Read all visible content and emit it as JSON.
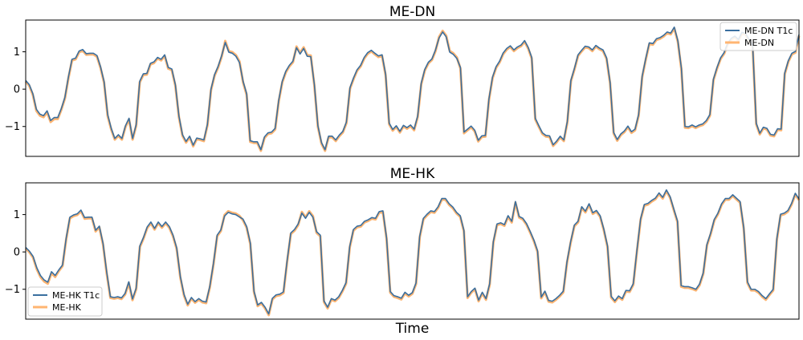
{
  "figure": {
    "xlabel": "Time"
  },
  "chart_data": [
    {
      "type": "line",
      "title": "ME-DN",
      "xlabel": "",
      "ylabel": "",
      "ylim": [
        -1.8,
        1.85
      ],
      "yticks": [
        -1,
        0,
        1
      ],
      "xticks": [],
      "grid": false,
      "legend_position": "top-right",
      "colors": {
        "fitted": "#3a6f9f",
        "observed": "#ffb572"
      },
      "series": [
        {
          "name": "ME-DN T1c",
          "role": "fitted",
          "color": "#3a6f9f",
          "values": [
            0.23,
            0.12,
            -0.12,
            -0.54,
            -0.67,
            -0.71,
            -0.58,
            -0.84,
            -0.76,
            -0.76,
            -0.52,
            -0.22,
            0.33,
            0.8,
            0.83,
            1.02,
            1.06,
            0.95,
            0.96,
            0.96,
            0.9,
            0.6,
            0.2,
            -0.68,
            -1.05,
            -1.32,
            -1.22,
            -1.32,
            -0.98,
            -0.78,
            -1.32,
            -0.95,
            0.21,
            0.41,
            0.42,
            0.69,
            0.73,
            0.85,
            0.8,
            0.92,
            0.58,
            0.54,
            0.12,
            -0.72,
            -1.22,
            -1.4,
            -1.26,
            -1.5,
            -1.31,
            -1.33,
            -1.36,
            -0.94,
            0.0,
            0.39,
            0.61,
            0.9,
            1.25,
            0.99,
            0.96,
            0.88,
            0.71,
            0.21,
            -0.12,
            -1.38,
            -1.41,
            -1.41,
            -1.62,
            -1.28,
            -1.17,
            -1.15,
            -1.05,
            -0.3,
            0.21,
            0.48,
            0.64,
            0.75,
            1.11,
            0.94,
            1.09,
            0.88,
            0.87,
            0.13,
            -0.98,
            -1.43,
            -1.62,
            -1.26,
            -1.26,
            -1.36,
            -1.23,
            -1.13,
            -0.88,
            0.04,
            0.3,
            0.52,
            0.64,
            0.85,
            0.98,
            1.04,
            0.96,
            0.89,
            0.92,
            0.4,
            -0.91,
            -1.08,
            -0.98,
            -1.13,
            -0.97,
            -1.03,
            -0.96,
            -1.07,
            -0.72,
            0.16,
            0.53,
            0.72,
            0.81,
            1.05,
            1.37,
            1.53,
            1.4,
            0.99,
            0.93,
            0.82,
            0.58,
            -1.15,
            -1.07,
            -0.99,
            -1.1,
            -1.37,
            -1.25,
            -1.24,
            -0.26,
            0.32,
            0.6,
            0.75,
            0.97,
            1.09,
            1.16,
            1.05,
            1.13,
            1.18,
            1.3,
            1.12,
            0.85,
            -0.78,
            -0.98,
            -1.17,
            -1.24,
            -1.25,
            -1.49,
            -1.39,
            -1.26,
            -1.36,
            -0.86,
            0.24,
            0.56,
            0.92,
            1.04,
            1.15,
            1.13,
            1.05,
            1.17,
            1.1,
            1.05,
            0.84,
            0.18,
            -1.16,
            -1.35,
            -1.2,
            -1.12,
            -0.99,
            -1.14,
            -1.07,
            -0.68,
            0.35,
            0.82,
            1.24,
            1.22,
            1.35,
            1.38,
            1.44,
            1.53,
            1.5,
            1.66,
            1.3,
            0.56,
            -1.0,
            -1.01,
            -0.96,
            -1.01,
            -0.96,
            -0.93,
            -0.84,
            -0.68,
            0.27,
            0.58,
            0.84,
            0.98,
            1.23,
            1.36,
            1.42,
            1.33,
            1.52,
            1.49,
            1.33,
            1.17,
            -0.91,
            -1.18,
            -1.02,
            -1.05,
            -1.21,
            -1.23,
            -1.06,
            -1.07,
            0.43,
            0.76,
            0.96,
            1.01,
            1.46
          ]
        },
        {
          "name": "ME-DN",
          "role": "observed",
          "color": "#ffb572",
          "values": [
            0.21,
            0.09,
            -0.15,
            -0.58,
            -0.71,
            -0.75,
            -0.62,
            -0.88,
            -0.8,
            -0.8,
            -0.55,
            -0.25,
            0.3,
            0.77,
            0.8,
            0.99,
            1.03,
            0.92,
            0.93,
            0.93,
            0.87,
            0.57,
            0.17,
            -0.72,
            -1.08,
            -1.35,
            -1.25,
            -1.35,
            -1.01,
            -0.81,
            -1.35,
            -0.98,
            0.18,
            0.38,
            0.39,
            0.66,
            0.7,
            0.82,
            0.77,
            0.89,
            0.55,
            0.51,
            0.09,
            -0.75,
            -1.25,
            -1.43,
            -1.29,
            -1.53,
            -1.34,
            -1.36,
            -1.39,
            -0.97,
            -0.03,
            0.36,
            0.58,
            0.87,
            1.29,
            1.02,
            0.99,
            0.91,
            0.74,
            0.18,
            -0.15,
            -1.41,
            -1.44,
            -1.44,
            -1.65,
            -1.31,
            -1.2,
            -1.18,
            -1.08,
            -0.33,
            0.18,
            0.45,
            0.61,
            0.72,
            1.14,
            0.97,
            1.12,
            0.91,
            0.9,
            0.1,
            -1.01,
            -1.46,
            -1.65,
            -1.29,
            -1.29,
            -1.39,
            -1.26,
            -1.16,
            -0.91,
            0.01,
            0.27,
            0.49,
            0.61,
            0.82,
            0.95,
            1.01,
            0.93,
            0.86,
            0.89,
            0.37,
            -0.94,
            -1.11,
            -1.01,
            -1.16,
            -1.0,
            -1.06,
            -0.99,
            -1.1,
            -0.75,
            0.13,
            0.5,
            0.69,
            0.78,
            1.02,
            1.4,
            1.56,
            1.43,
            1.02,
            0.96,
            0.85,
            0.55,
            -1.18,
            -1.1,
            -1.02,
            -1.13,
            -1.4,
            -1.28,
            -1.27,
            -0.29,
            0.29,
            0.57,
            0.72,
            0.94,
            1.06,
            1.13,
            1.02,
            1.1,
            1.15,
            1.27,
            1.09,
            0.82,
            -0.81,
            -1.01,
            -1.2,
            -1.27,
            -1.28,
            -1.52,
            -1.42,
            -1.29,
            -1.39,
            -0.89,
            0.21,
            0.53,
            0.89,
            1.01,
            1.12,
            1.1,
            1.02,
            1.14,
            1.07,
            1.02,
            0.81,
            0.15,
            -1.19,
            -1.38,
            -1.23,
            -1.15,
            -1.02,
            -1.17,
            -1.1,
            -0.71,
            0.32,
            0.79,
            1.21,
            1.19,
            1.32,
            1.35,
            1.41,
            1.5,
            1.47,
            1.63,
            1.27,
            0.53,
            -1.03,
            -1.04,
            -0.99,
            -1.04,
            -0.99,
            -0.96,
            -0.87,
            -0.71,
            0.24,
            0.55,
            0.81,
            0.95,
            1.2,
            1.33,
            1.39,
            1.3,
            1.49,
            1.46,
            1.3,
            1.14,
            -0.94,
            -1.21,
            -1.05,
            -1.08,
            -1.24,
            -1.26,
            -1.09,
            -1.1,
            0.4,
            0.73,
            0.93,
            0.98,
            1.43
          ]
        }
      ]
    },
    {
      "type": "line",
      "title": "ME-HK",
      "xlabel": "Time",
      "ylabel": "",
      "ylim": [
        -1.8,
        1.85
      ],
      "yticks": [
        -1,
        0,
        1
      ],
      "xticks": [],
      "grid": false,
      "legend_position": "bottom-left",
      "colors": {
        "fitted": "#3a6f9f",
        "observed": "#ffb572"
      },
      "series": [
        {
          "name": "ME-HK T1c",
          "role": "fitted",
          "color": "#3a6f9f",
          "values": [
            0.12,
            0.02,
            -0.12,
            -0.42,
            -0.63,
            -0.75,
            -0.81,
            -0.53,
            -0.63,
            -0.48,
            -0.35,
            0.37,
            0.93,
            0.99,
            1.02,
            1.12,
            0.92,
            0.93,
            0.93,
            0.58,
            0.69,
            0.23,
            -0.54,
            -1.2,
            -1.22,
            -1.2,
            -1.23,
            -1.11,
            -0.8,
            -1.26,
            -0.97,
            0.16,
            0.39,
            0.67,
            0.8,
            0.63,
            0.8,
            0.68,
            0.8,
            0.68,
            0.45,
            0.11,
            -0.66,
            -1.14,
            -1.4,
            -1.22,
            -1.33,
            -1.25,
            -1.32,
            -1.34,
            -0.92,
            -0.3,
            0.45,
            0.59,
            0.96,
            1.06,
            1.02,
            1.0,
            0.94,
            0.88,
            0.68,
            0.24,
            -1.05,
            -1.42,
            -1.35,
            -1.48,
            -1.66,
            -1.24,
            -1.15,
            -1.13,
            -1.07,
            -0.23,
            0.51,
            0.6,
            0.75,
            1.04,
            0.9,
            1.06,
            0.93,
            0.54,
            0.45,
            -1.31,
            -1.48,
            -1.25,
            -1.29,
            -1.2,
            -1.03,
            -0.82,
            0.15,
            0.6,
            0.69,
            0.71,
            0.82,
            0.86,
            0.92,
            0.9,
            1.08,
            1.1,
            0.38,
            -1.06,
            -1.17,
            -1.2,
            -1.24,
            -1.08,
            -1.16,
            -1.09,
            -0.83,
            0.42,
            0.9,
            1.01,
            1.1,
            1.08,
            1.21,
            1.43,
            1.43,
            1.29,
            1.2,
            1.06,
            0.97,
            0.58,
            -1.2,
            -1.06,
            -0.97,
            -1.29,
            -1.08,
            -1.25,
            -0.85,
            0.28,
            0.75,
            0.78,
            0.73,
            0.97,
            0.82,
            1.35,
            0.95,
            0.9,
            0.76,
            0.55,
            0.32,
            0.03,
            -1.21,
            -1.05,
            -1.3,
            -1.32,
            -1.25,
            -1.16,
            -1.05,
            -0.26,
            0.28,
            0.72,
            0.82,
            1.21,
            1.09,
            1.29,
            1.05,
            1.11,
            0.97,
            0.61,
            0.16,
            -1.19,
            -1.31,
            -1.18,
            -1.25,
            -1.03,
            -1.04,
            -0.85,
            0.05,
            0.89,
            1.27,
            1.3,
            1.38,
            1.44,
            1.58,
            1.46,
            1.66,
            1.48,
            1.15,
            0.83,
            -0.9,
            -0.93,
            -0.93,
            -0.96,
            -1.0,
            -0.86,
            -0.56,
            0.2,
            0.5,
            0.87,
            1.04,
            1.29,
            1.43,
            1.43,
            1.53,
            1.44,
            1.35,
            0.65,
            -0.8,
            -1.0,
            -1.0,
            -1.06,
            -1.17,
            -1.25,
            -1.12,
            -1.0,
            0.36,
            1.01,
            1.04,
            1.11,
            1.3,
            1.57,
            1.42
          ]
        },
        {
          "name": "ME-HK",
          "role": "observed",
          "color": "#ffb572",
          "values": [
            0.1,
            -0.01,
            -0.15,
            -0.46,
            -0.67,
            -0.79,
            -0.85,
            -0.57,
            -0.67,
            -0.51,
            -0.38,
            0.34,
            0.9,
            0.96,
            0.99,
            1.09,
            0.89,
            0.9,
            0.9,
            0.55,
            0.66,
            0.2,
            -0.58,
            -1.23,
            -1.25,
            -1.23,
            -1.26,
            -1.14,
            -0.83,
            -1.29,
            -1.0,
            0.13,
            0.36,
            0.64,
            0.77,
            0.6,
            0.77,
            0.65,
            0.77,
            0.65,
            0.42,
            0.08,
            -0.69,
            -1.17,
            -1.43,
            -1.25,
            -1.36,
            -1.28,
            -1.35,
            -1.37,
            -0.95,
            -0.33,
            0.42,
            0.56,
            0.99,
            1.09,
            1.05,
            1.03,
            0.97,
            0.85,
            0.65,
            0.21,
            -1.08,
            -1.45,
            -1.38,
            -1.51,
            -1.69,
            -1.27,
            -1.18,
            -1.16,
            -1.1,
            -0.26,
            0.48,
            0.57,
            0.72,
            1.07,
            0.93,
            1.09,
            0.96,
            0.51,
            0.42,
            -1.34,
            -1.51,
            -1.28,
            -1.32,
            -1.23,
            -1.06,
            -0.85,
            0.12,
            0.57,
            0.66,
            0.68,
            0.79,
            0.83,
            0.89,
            0.87,
            1.05,
            1.07,
            0.35,
            -1.09,
            -1.2,
            -1.23,
            -1.27,
            -1.11,
            -1.19,
            -1.12,
            -0.86,
            0.39,
            0.87,
            0.98,
            1.07,
            1.05,
            1.18,
            1.4,
            1.4,
            1.26,
            1.17,
            1.03,
            0.94,
            0.55,
            -1.23,
            -1.09,
            -1.0,
            -1.32,
            -1.11,
            -1.28,
            -0.88,
            0.25,
            0.72,
            0.75,
            0.7,
            0.94,
            0.79,
            1.32,
            0.92,
            0.87,
            0.73,
            0.52,
            0.29,
            0.0,
            -1.24,
            -1.08,
            -1.33,
            -1.35,
            -1.28,
            -1.19,
            -1.08,
            -0.29,
            0.25,
            0.69,
            0.79,
            1.18,
            1.06,
            1.26,
            1.02,
            1.08,
            0.94,
            0.58,
            0.13,
            -1.22,
            -1.34,
            -1.21,
            -1.28,
            -1.06,
            -1.07,
            -0.88,
            0.02,
            0.86,
            1.24,
            1.27,
            1.35,
            1.41,
            1.55,
            1.43,
            1.63,
            1.45,
            1.12,
            0.8,
            -0.93,
            -0.96,
            -0.96,
            -0.99,
            -1.03,
            -0.89,
            -0.59,
            0.17,
            0.47,
            0.84,
            1.01,
            1.26,
            1.4,
            1.4,
            1.5,
            1.41,
            1.32,
            0.62,
            -0.83,
            -1.03,
            -1.03,
            -1.09,
            -1.2,
            -1.28,
            -1.15,
            -1.03,
            0.33,
            0.98,
            1.01,
            1.08,
            1.27,
            1.54,
            1.39
          ]
        }
      ]
    }
  ]
}
